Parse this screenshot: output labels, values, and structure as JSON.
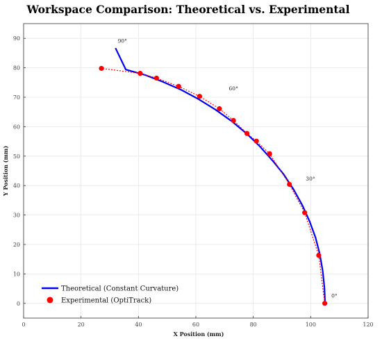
{
  "chart_data": {
    "type": "line",
    "title": "Workspace Comparison: Theoretical vs. Experimental",
    "xlabel": "X Position (mm)",
    "ylabel": "Y Position (mm)",
    "xlim": [
      0,
      120
    ],
    "ylim": [
      -5,
      95
    ],
    "xticks": [
      0,
      20,
      40,
      60,
      80,
      100,
      120
    ],
    "yticks": [
      0,
      10,
      20,
      30,
      40,
      50,
      60,
      70,
      80,
      90
    ],
    "grid": true,
    "legend": "bottom-left",
    "series": [
      {
        "name": "Theoretical (Constant Curvature)",
        "style": "solid-line",
        "color": "#0000ee",
        "x": [
          105.0,
          104.8,
          104.2,
          103.2,
          101.7,
          99.6,
          97.1,
          94.1,
          90.6,
          86.6,
          82.2,
          77.5,
          72.3,
          66.8,
          61.0,
          54.9,
          48.6,
          42.2,
          35.6,
          32.0
        ],
        "y": [
          0.0,
          5.2,
          10.9,
          16.6,
          22.3,
          27.9,
          33.3,
          38.6,
          43.8,
          48.6,
          53.4,
          57.8,
          62.0,
          65.8,
          69.3,
          72.5,
          75.2,
          77.6,
          79.4,
          86.7
        ]
      },
      {
        "name": "Experimental (OptiTrack)",
        "style": "dotted-line-markers",
        "color": "#ff0000",
        "x": [
          104.9,
          102.8,
          97.9,
          92.6,
          85.7,
          81.1,
          77.8,
          73.1,
          68.2,
          61.3,
          54.0,
          46.3,
          40.6,
          27.1
        ],
        "y": [
          0.0,
          16.3,
          30.8,
          40.4,
          50.8,
          55.1,
          57.7,
          62.1,
          66.1,
          70.3,
          73.7,
          76.5,
          78.1,
          79.8
        ]
      }
    ],
    "annotations": [
      {
        "text": "0°",
        "x": 107.2,
        "y": 2.0
      },
      {
        "text": "30°",
        "x": 98.3,
        "y": 41.7
      },
      {
        "text": "60°",
        "x": 71.5,
        "y": 72.4
      },
      {
        "text": "90°",
        "x": 32.8,
        "y": 88.5
      }
    ]
  }
}
